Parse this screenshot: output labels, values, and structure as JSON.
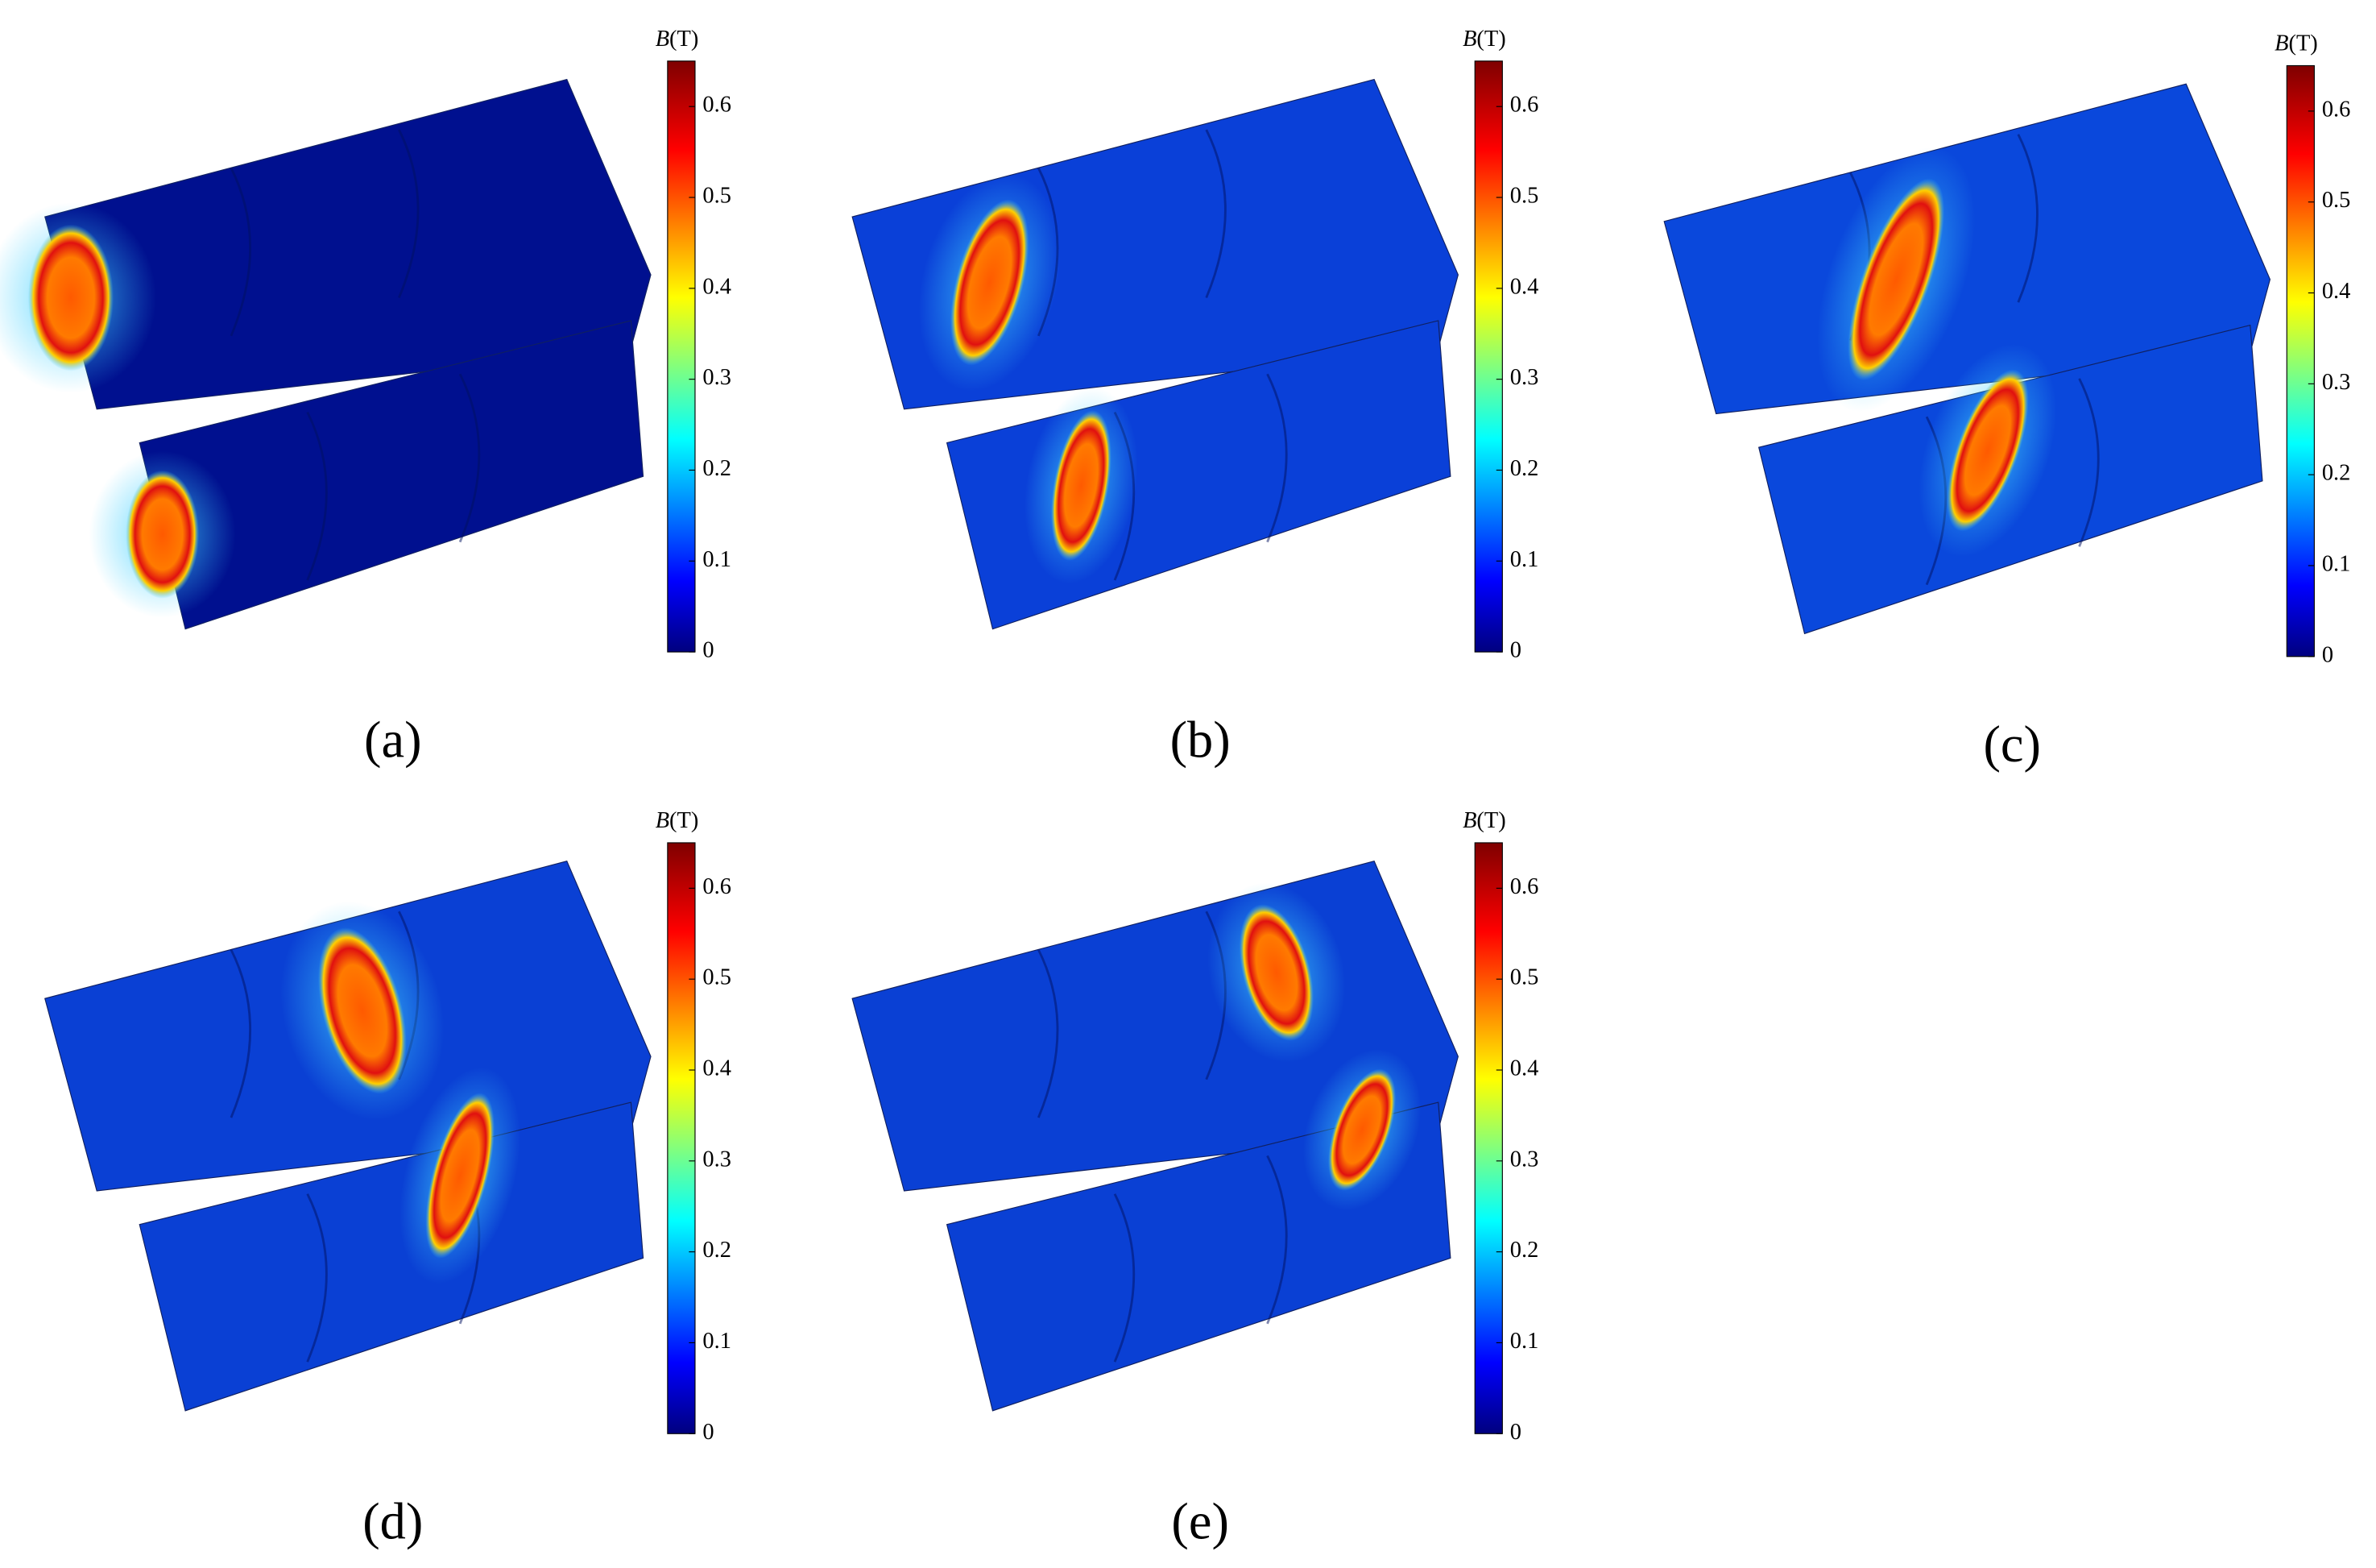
{
  "colorbar": {
    "title_symbol": "B",
    "title_unit": "(T)",
    "range": [
      0,
      0.65
    ],
    "ticks": [
      0,
      0.1,
      0.2,
      0.3,
      0.4,
      0.5,
      0.6
    ]
  },
  "panels": [
    {
      "label": "(a)"
    },
    {
      "label": "(b)"
    },
    {
      "label": "(c)"
    },
    {
      "label": "(d)"
    },
    {
      "label": "(e)"
    }
  ]
}
